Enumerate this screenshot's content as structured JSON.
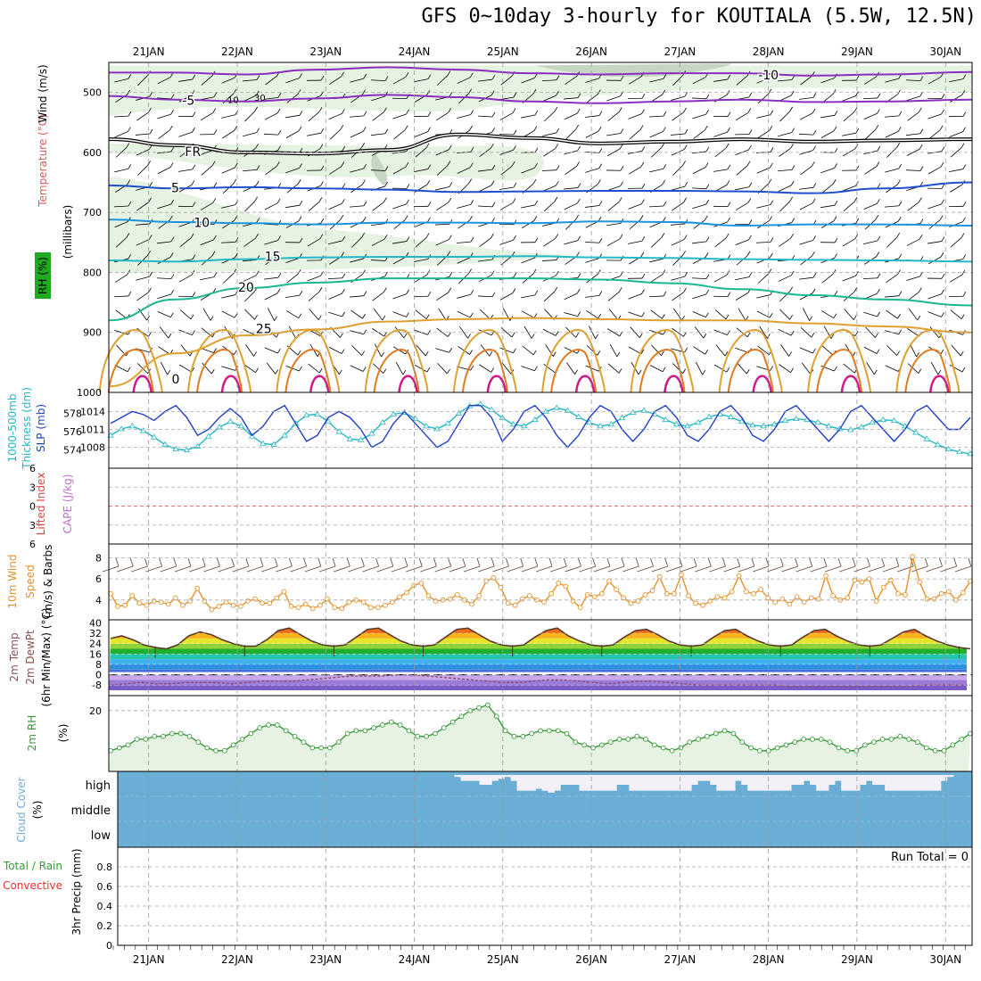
{
  "title": "GFS 0~10day 3-hourly for KOUTIALA (5.5W, 12.5N)",
  "colors": {
    "rh_fill": "#e6f2e2",
    "rh_fill_dark": "#c5d7c2",
    "slp": "#1f3fc6",
    "thickness": "#22b7c4",
    "lifted_index": "#e84040",
    "cape": "#c070d0",
    "wind": "#e8902a",
    "dewpt": "#8a5070",
    "rh2m": "#3a9a3a",
    "cloud": "#6aaed6",
    "precip_total": "#3a9a3a",
    "precip_conv": "#e83030",
    "iso_purple": "#8a2fc0",
    "iso_black": "#000000",
    "iso_blue": "#1f4fd0",
    "iso_lightblue": "#1c94e0",
    "iso_cyan": "#22b8c8",
    "iso_teal": "#18b890",
    "iso_orange": "#e0a030",
    "iso_darkorange": "#e07a20",
    "iso_magenta": "#d01a8a"
  },
  "chart_data": [
    {
      "id": "upper_air",
      "type": "contour",
      "ylabel": "(millibars)",
      "left_labels": [
        "Temperature (°C)",
        "Wind (m/s)",
        "RH (%)"
      ],
      "y_range": [
        450,
        1000
      ],
      "yticks": [
        500,
        600,
        700,
        800,
        900,
        1000
      ],
      "dates": [
        "21JAN",
        "22JAN",
        "23JAN",
        "24JAN",
        "25JAN",
        "26JAN",
        "27JAN",
        "28JAN",
        "29JAN",
        "30JAN"
      ],
      "day_range": [
        20.55,
        30.3
      ],
      "isotherms": [
        {
          "label": "-10",
          "color_key": "iso_purple",
          "pressure": [
            467,
            467,
            470,
            462,
            458,
            462,
            468,
            470,
            468,
            468,
            472,
            470,
            466
          ],
          "label_day": 28.0
        },
        {
          "label": "-5",
          "color_key": "iso_purple",
          "pressure": [
            506,
            512,
            515,
            510,
            504,
            508,
            515,
            518,
            515,
            512,
            516,
            515,
            512
          ],
          "label_day": 21.45
        },
        {
          "label": "FR",
          "color_key": "iso_black",
          "pressure": [
            578,
            588,
            600,
            602,
            596,
            570,
            576,
            585,
            582,
            578,
            582,
            580,
            578
          ],
          "label_day": 21.5
        },
        {
          "label": "5",
          "color_key": "iso_blue",
          "pressure": [
            655,
            660,
            658,
            660,
            662,
            666,
            665,
            664,
            664,
            665,
            668,
            660,
            650
          ],
          "label_day": 21.3
        },
        {
          "label": "10",
          "color_key": "iso_lightblue",
          "pressure": [
            712,
            716,
            718,
            720,
            717,
            717,
            718,
            715,
            716,
            722,
            720,
            720,
            722
          ],
          "label_day": 21.6
        },
        {
          "label": "15",
          "color_key": "iso_cyan",
          "pressure": [
            780,
            782,
            778,
            775,
            774,
            774,
            773,
            775,
            776,
            778,
            779,
            780,
            782
          ],
          "label_day": 22.4
        },
        {
          "label": "20",
          "color_key": "iso_teal",
          "pressure": [
            880,
            845,
            826,
            817,
            810,
            810,
            810,
            812,
            818,
            828,
            838,
            845,
            855
          ],
          "label_day": 22.1
        },
        {
          "label": "25",
          "color_key": "iso_orange",
          "pressure": [
            990,
            935,
            905,
            895,
            882,
            878,
            876,
            878,
            880,
            880,
            885,
            890,
            900
          ],
          "label_day": 22.3
        }
      ],
      "iso_days": [
        20.55,
        21.3,
        22.1,
        22.9,
        23.7,
        24.5,
        25.3,
        26.1,
        26.9,
        27.7,
        28.5,
        29.3,
        30.3
      ],
      "rh_labels": [
        "10",
        "30"
      ],
      "surface_iso_labels": [
        "0"
      ]
    },
    {
      "id": "slp_thickness",
      "type": "line",
      "left_labels": [
        "1000-500mb",
        "Thickness (dm)",
        "SLP (mb)"
      ],
      "y_left_ticks": [
        574,
        576,
        578
      ],
      "y_right_ticks": [
        1008,
        1011,
        1014
      ],
      "series": [
        {
          "name": "SLP (mb)",
          "color_key": "slp",
          "axis": "right",
          "values": [
            1012,
            1013,
            1014,
            1013.5,
            1012.5,
            1014,
            1015,
            1013,
            1010,
            1011,
            1013,
            1014.5,
            1013,
            1010,
            1011.5,
            1014,
            1015,
            1012,
            1009,
            1010,
            1013,
            1014,
            1013,
            1011,
            1008,
            1009,
            1012,
            1014,
            1012,
            1010,
            1008,
            1009,
            1012,
            1015,
            1015,
            1013,
            1009,
            1011,
            1014,
            1015,
            1013,
            1010,
            1008,
            1010,
            1013,
            1015,
            1014,
            1011,
            1009,
            1011,
            1014,
            1015,
            1013,
            1010,
            1009,
            1011,
            1014,
            1015,
            1013,
            1010,
            1009,
            1011,
            1014,
            1015,
            1013,
            1011,
            1009,
            1011,
            1014,
            1015,
            1013,
            1011,
            1009,
            1011,
            1014,
            1015,
            1013,
            1011,
            1011,
            1013
          ]
        },
        {
          "name": "Thickness (dm)",
          "color_key": "thickness",
          "axis": "left",
          "values": [
            575.6,
            576.3,
            576.6,
            576.1,
            575.4,
            574.6,
            574.1,
            574.0,
            574.4,
            575.5,
            576.5,
            577.1,
            576.6,
            575.5,
            574.7,
            574.6,
            575.6,
            576.9,
            577.8,
            577.9,
            577.1,
            576.0,
            575.2,
            575.1,
            575.8,
            577.0,
            577.9,
            578.1,
            577.4,
            576.6,
            576.3,
            576.9,
            578.0,
            578.8,
            579.0,
            578.4,
            577.5,
            576.8,
            576.6,
            577.3,
            578.2,
            578.6,
            578.3,
            577.6,
            577.0,
            576.6,
            576.8,
            577.5,
            578.1,
            578.3,
            577.9,
            577.3,
            576.8,
            576.6,
            577.0,
            577.6,
            577.9,
            577.6,
            577.1,
            576.7,
            576.6,
            576.8,
            577.2,
            577.4,
            577.3,
            577.0,
            576.6,
            576.3,
            576.2,
            576.5,
            577.0,
            577.3,
            577.2,
            576.6,
            575.9,
            575.2,
            574.6,
            574.1,
            573.8,
            573.6
          ]
        }
      ]
    },
    {
      "id": "stability",
      "type": "line",
      "left_labels": [
        "Lifted Index",
        "CAPE (J/kg)"
      ],
      "yticks": [
        -6,
        -3,
        0,
        3,
        6
      ],
      "ytick_labels": [
        "6",
        "3",
        "0",
        "3",
        "6"
      ],
      "series": [
        {
          "name": "Lifted Index",
          "color_key": "lifted_index",
          "values": [
            0
          ]
        }
      ]
    },
    {
      "id": "wind10m",
      "type": "line",
      "left_labels": [
        "10m Wind",
        "Speed",
        "(m/s) & Barbs"
      ],
      "yticks": [
        4,
        6,
        8
      ],
      "series": [
        {
          "name": "10m Wind Speed",
          "color_key": "wind",
          "values": [
            4.6,
            3.4,
            3.5,
            4.4,
            3.7,
            3.5,
            3.9,
            3.8,
            3.6,
            4.2,
            3.5,
            3.9,
            5.1,
            3.9,
            3.1,
            3.4,
            3.8,
            3.5,
            3.4,
            3.9,
            4.1,
            3.7,
            3.7,
            4.2,
            4.8,
            3.4,
            3.3,
            3.6,
            3.2,
            3.5,
            4.1,
            3.3,
            3.2,
            3.8,
            4.0,
            3.8,
            3.3,
            3.3,
            3.5,
            3.8,
            4.3,
            4.7,
            5.4,
            5.6,
            4.4,
            3.9,
            4.0,
            4.1,
            4.5,
            4.0,
            3.6,
            4.4,
            5.8,
            6.1,
            5.2,
            3.7,
            3.5,
            4.1,
            4.4,
            4.0,
            3.8,
            4.6,
            5.6,
            5.3,
            3.9,
            3.3,
            4.5,
            4.3,
            4.6,
            5.8,
            5.0,
            4.2,
            3.7,
            3.9,
            4.5,
            4.9,
            6.2,
            4.6,
            4.6,
            6.4,
            4.4,
            3.7,
            3.5,
            3.9,
            4.3,
            4.2,
            4.8,
            6.3,
            4.8,
            4.6,
            5.0,
            4.2,
            3.8,
            4.1,
            3.6,
            4.3,
            3.8,
            4.2,
            4.1,
            6.3,
            4.4,
            4.0,
            4.2,
            5.9,
            5.7,
            6.0,
            3.9,
            5.2,
            5.9,
            4.6,
            4.5,
            8.1,
            5.7,
            4.1,
            4.1,
            4.6,
            4.8,
            4.0,
            4.7,
            5.8
          ]
        },
        {
          "name": "10m Wind Barbs",
          "color_key": "dewpt",
          "values": [
            0
          ]
        }
      ]
    },
    {
      "id": "temp2m",
      "type": "area",
      "left_labels": [
        "2m Temp",
        "2m DewPt",
        "(6hr Min/Max) (°C)"
      ],
      "yticks": [
        -8,
        0,
        8,
        16,
        24,
        32,
        40
      ],
      "series": [
        {
          "name": "2m Temp",
          "color_key": "dewpt",
          "values": [
            28,
            30,
            27,
            23,
            21,
            20,
            23,
            30,
            33,
            31,
            27,
            24,
            22,
            22,
            27,
            34,
            36,
            31,
            26,
            23,
            22,
            23,
            29,
            35,
            36,
            31,
            26,
            23,
            22,
            23,
            29,
            35,
            36,
            31,
            26,
            23,
            22,
            23,
            29,
            34,
            36,
            30,
            26,
            23,
            22,
            23,
            29,
            34,
            35,
            31,
            26,
            23,
            22,
            23,
            29,
            34,
            35,
            30,
            26,
            23,
            22,
            23,
            29,
            34,
            35,
            30,
            26,
            23,
            22,
            23,
            28,
            33,
            35,
            30,
            26,
            23,
            21,
            20
          ]
        },
        {
          "name": "2m DewPt",
          "color_key": "dewpt",
          "values": [
            -8,
            -7,
            -6,
            -7,
            -7,
            -6,
            -6,
            -6,
            -7,
            -6,
            -5,
            -5,
            -5,
            -4,
            -3,
            -2,
            -1,
            -1,
            -1,
            0,
            0,
            -1,
            -2,
            -3,
            -4,
            -5,
            -6,
            -6,
            -5,
            -4,
            -4,
            -5,
            -6,
            -7,
            -6,
            -5,
            -5,
            -6,
            -7,
            -8,
            -8,
            -8,
            -8,
            -8,
            -8,
            -9,
            -9,
            -9,
            -9,
            -9,
            -9,
            -9,
            -9,
            -9,
            -8,
            -8,
            -8,
            -8
          ]
        }
      ]
    },
    {
      "id": "rh2m",
      "type": "area",
      "left_labels": [
        "2m RH",
        "(%)"
      ],
      "yticks": [
        20
      ],
      "series": [
        {
          "name": "2m RH",
          "color_key": "rh2m",
          "values": [
            6,
            7,
            8,
            10,
            10,
            11,
            11,
            12,
            12,
            11,
            9,
            7,
            6,
            6,
            8,
            10,
            12,
            14,
            15,
            15,
            13,
            11,
            9,
            7,
            7,
            7,
            9,
            12,
            13,
            13,
            14,
            15,
            16,
            15,
            13,
            11,
            11,
            12,
            14,
            16,
            18,
            20,
            21,
            22,
            18,
            13,
            11,
            11,
            12,
            13,
            13,
            13,
            12,
            9,
            8,
            7,
            8,
            9,
            10,
            10,
            11,
            10,
            8,
            7,
            6,
            7,
            9,
            10,
            11,
            12,
            13,
            12,
            9,
            7,
            6,
            6,
            7,
            8,
            9,
            10,
            10,
            10,
            9,
            7,
            6,
            6,
            8,
            9,
            10,
            10,
            11,
            10,
            9,
            7,
            6,
            6,
            8,
            10,
            12
          ]
        }
      ]
    },
    {
      "id": "cloud",
      "type": "bar",
      "left_labels": [
        "Cloud Cover",
        "(%)"
      ],
      "ytick_labels": [
        "high",
        "middle",
        "low"
      ],
      "series": [
        {
          "name": "high cloud gap fraction",
          "color_key": "cloud",
          "values": [
            0,
            0,
            0,
            0,
            0,
            0,
            0,
            0,
            0,
            0,
            0,
            0,
            0,
            0,
            0,
            0,
            0,
            0,
            0,
            0,
            0,
            0,
            0,
            0,
            0,
            0,
            0,
            0,
            0,
            0,
            0,
            0,
            0,
            0,
            0,
            0,
            0,
            0,
            0,
            0,
            0,
            0,
            0,
            0,
            0,
            0,
            0,
            0,
            0,
            0,
            0,
            0,
            0,
            0,
            0.1,
            0.3,
            0.3,
            0.3,
            0.5,
            0.5,
            0.3,
            0.2,
            0.1,
            0.3,
            0.8,
            0.8,
            0.8,
            0.7,
            0.8,
            0.9,
            0.8,
            0.5,
            0.5,
            0.5,
            0.8,
            0.8,
            0.8,
            0.8,
            0.8,
            0.8,
            0.5,
            0.5,
            0.8,
            0.8,
            0.8,
            0.8,
            0.8,
            0.8,
            0.8,
            0.8,
            0.8,
            0.8,
            0.5,
            0.3,
            0.3,
            0.5,
            0.8,
            0.8,
            0.8,
            0.3,
            0.5,
            0.8,
            0.8,
            0.8,
            0.8,
            0.8,
            0.8,
            0.8,
            0.5,
            0.5,
            0.3,
            0.5,
            0.8,
            0.8,
            0.5,
            0.3,
            0.8,
            0.8,
            0.8,
            0.5,
            0.3,
            0.5,
            0.5,
            0.8,
            0.8,
            0.8,
            0.8,
            0.8,
            0.8,
            0.8,
            0.8,
            0.8,
            0.3,
            0.1,
            0,
            0,
            0
          ]
        }
      ]
    },
    {
      "id": "precip",
      "type": "bar",
      "left_labels": [
        "Total / Rain",
        "Convective",
        "3hr Precip (mm)"
      ],
      "yticks": [
        0,
        0.2,
        0.4,
        0.6,
        0.8
      ],
      "annotation": "Run Total = 0",
      "series": [
        {
          "name": "3hr Precip",
          "color_key": "precip_total",
          "values": [
            0
          ]
        }
      ]
    }
  ]
}
